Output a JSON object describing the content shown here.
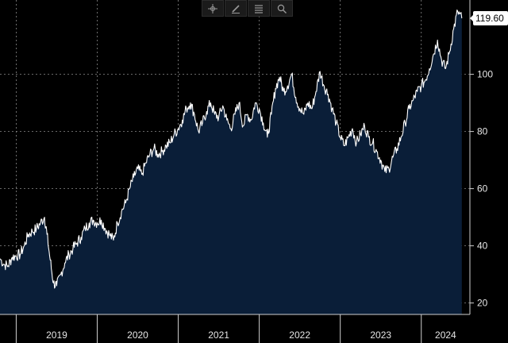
{
  "toolbar": {
    "tools": [
      {
        "name": "crosshair-icon"
      },
      {
        "name": "pencil-icon"
      },
      {
        "name": "list-icon"
      },
      {
        "name": "search-icon"
      }
    ]
  },
  "colors": {
    "background": "#000000",
    "line": "#ffffff",
    "fill": "#0a1e38",
    "grid": "#8a8a8a",
    "label_box": "#ffffff"
  },
  "chart_data": {
    "type": "area",
    "title": "",
    "xlabel": "",
    "ylabel": "",
    "ylim": [
      16,
      126
    ],
    "xlim": [
      2018.8,
      2024.6
    ],
    "y_ticks": [
      20,
      40,
      60,
      80,
      100
    ],
    "x_tick_labels": [
      "2019",
      "2020",
      "2021",
      "2022",
      "2023",
      "2024"
    ],
    "grid": true,
    "last_value_label": "119.60",
    "series": [
      {
        "values": [
          [
            2018.8,
            35.5
          ],
          [
            2018.85,
            33.5
          ],
          [
            2018.9,
            33
          ],
          [
            2018.95,
            36
          ],
          [
            2019.0,
            36.5
          ],
          [
            2019.05,
            37
          ],
          [
            2019.1,
            40
          ],
          [
            2019.15,
            44
          ],
          [
            2019.2,
            45
          ],
          [
            2019.25,
            46
          ],
          [
            2019.3,
            48
          ],
          [
            2019.35,
            50
          ],
          [
            2019.38,
            44
          ],
          [
            2019.42,
            35
          ],
          [
            2019.46,
            27
          ],
          [
            2019.5,
            26
          ],
          [
            2019.55,
            30
          ],
          [
            2019.6,
            34
          ],
          [
            2019.65,
            37
          ],
          [
            2019.7,
            39
          ],
          [
            2019.75,
            41
          ],
          [
            2019.8,
            43
          ],
          [
            2019.85,
            46
          ],
          [
            2019.9,
            48
          ],
          [
            2019.95,
            49
          ],
          [
            2020.0,
            48
          ],
          [
            2020.05,
            49
          ],
          [
            2020.1,
            46
          ],
          [
            2020.15,
            44
          ],
          [
            2020.2,
            42
          ],
          [
            2020.25,
            48
          ],
          [
            2020.3,
            52
          ],
          [
            2020.35,
            55
          ],
          [
            2020.4,
            60
          ],
          [
            2020.45,
            64
          ],
          [
            2020.5,
            67
          ],
          [
            2020.55,
            65
          ],
          [
            2020.6,
            69
          ],
          [
            2020.65,
            72
          ],
          [
            2020.7,
            74
          ],
          [
            2020.75,
            72
          ],
          [
            2020.8,
            73
          ],
          [
            2020.85,
            75
          ],
          [
            2020.9,
            76
          ],
          [
            2020.95,
            79
          ],
          [
            2021.0,
            81
          ],
          [
            2021.05,
            84
          ],
          [
            2021.1,
            88
          ],
          [
            2021.15,
            90
          ],
          [
            2021.2,
            86
          ],
          [
            2021.25,
            80
          ],
          [
            2021.3,
            83
          ],
          [
            2021.35,
            87
          ],
          [
            2021.4,
            90
          ],
          [
            2021.45,
            86
          ],
          [
            2021.5,
            85
          ],
          [
            2021.55,
            89
          ],
          [
            2021.6,
            84
          ],
          [
            2021.65,
            81
          ],
          [
            2021.7,
            86
          ],
          [
            2021.75,
            90
          ],
          [
            2021.8,
            82
          ],
          [
            2021.85,
            86
          ],
          [
            2021.9,
            84
          ],
          [
            2021.95,
            90
          ],
          [
            2022.0,
            88
          ],
          [
            2022.05,
            83
          ],
          [
            2022.1,
            78
          ],
          [
            2022.15,
            86
          ],
          [
            2022.2,
            95
          ],
          [
            2022.25,
            99
          ],
          [
            2022.3,
            94
          ],
          [
            2022.35,
            96
          ],
          [
            2022.4,
            100
          ],
          [
            2022.45,
            92
          ],
          [
            2022.5,
            88
          ],
          [
            2022.55,
            86
          ],
          [
            2022.6,
            90
          ],
          [
            2022.65,
            88
          ],
          [
            2022.7,
            94
          ],
          [
            2022.75,
            101
          ],
          [
            2022.8,
            96
          ],
          [
            2022.85,
            93
          ],
          [
            2022.9,
            88
          ],
          [
            2022.95,
            83
          ],
          [
            2023.0,
            78
          ],
          [
            2023.05,
            75
          ],
          [
            2023.1,
            78
          ],
          [
            2023.15,
            81
          ],
          [
            2023.2,
            76
          ],
          [
            2023.25,
            79
          ],
          [
            2023.3,
            82
          ],
          [
            2023.35,
            78
          ],
          [
            2023.4,
            76
          ],
          [
            2023.45,
            73
          ],
          [
            2023.5,
            70
          ],
          [
            2023.55,
            66
          ],
          [
            2023.6,
            67
          ],
          [
            2023.65,
            71
          ],
          [
            2023.7,
            74
          ],
          [
            2023.75,
            78
          ],
          [
            2023.8,
            83
          ],
          [
            2023.85,
            88
          ],
          [
            2023.9,
            91
          ],
          [
            2023.95,
            94
          ],
          [
            2024.0,
            96
          ],
          [
            2024.05,
            98
          ],
          [
            2024.1,
            102
          ],
          [
            2024.15,
            107
          ],
          [
            2024.2,
            112
          ],
          [
            2024.25,
            105
          ],
          [
            2024.3,
            102
          ],
          [
            2024.35,
            108
          ],
          [
            2024.4,
            116
          ],
          [
            2024.45,
            122
          ],
          [
            2024.5,
            119.6
          ]
        ]
      }
    ]
  }
}
